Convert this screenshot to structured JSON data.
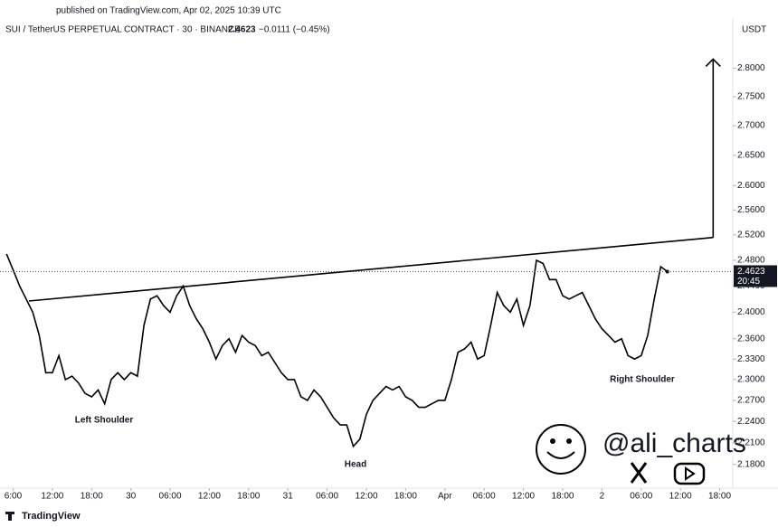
{
  "header": "published on TradingView.com, Apr 02, 2025 10:39 UTC",
  "footer": "TradingView",
  "watermark": "@ali_charts",
  "chart_data": {
    "type": "line",
    "title": "SUI / TetherUS PERPETUAL CONTRACT · 30 · BINANCE",
    "last_price": 2.4623,
    "last_price_label": "2.4623",
    "change_label": "−0.0111 (−0.45%)",
    "countdown": "20:45",
    "y_axis_label": "USDT",
    "yscale": "log",
    "color": "#000000",
    "xlim": [
      -2,
      110
    ],
    "ylim": [
      2.15,
      2.89
    ],
    "xticks": [
      {
        "value": 0,
        "label": "6:00"
      },
      {
        "value": 6,
        "label": "12:00"
      },
      {
        "value": 12,
        "label": "18:00"
      },
      {
        "value": 18,
        "label": "30"
      },
      {
        "value": 24,
        "label": "06:00"
      },
      {
        "value": 30,
        "label": "12:00"
      },
      {
        "value": 36,
        "label": "18:00"
      },
      {
        "value": 42,
        "label": "31"
      },
      {
        "value": 48,
        "label": "06:00"
      },
      {
        "value": 54,
        "label": "12:00"
      },
      {
        "value": 60,
        "label": "18:00"
      },
      {
        "value": 66,
        "label": "Apr"
      },
      {
        "value": 72,
        "label": "06:00"
      },
      {
        "value": 78,
        "label": "12:00"
      },
      {
        "value": 84,
        "label": "18:00"
      },
      {
        "value": 90,
        "label": "2"
      },
      {
        "value": 96,
        "label": "06:00"
      },
      {
        "value": 102,
        "label": "12:00"
      },
      {
        "value": 108,
        "label": "18:00"
      }
    ],
    "yticks": [
      {
        "value": 2.18,
        "label": "2.1800"
      },
      {
        "value": 2.21,
        "label": "2.2100"
      },
      {
        "value": 2.24,
        "label": "2.2400"
      },
      {
        "value": 2.27,
        "label": "2.2700"
      },
      {
        "value": 2.3,
        "label": "2.3000"
      },
      {
        "value": 2.33,
        "label": "2.3300"
      },
      {
        "value": 2.36,
        "label": "2.3600"
      },
      {
        "value": 2.4,
        "label": "2.4000"
      },
      {
        "value": 2.44,
        "label": "2.4400"
      },
      {
        "value": 2.48,
        "label": "2.4800"
      },
      {
        "value": 2.52,
        "label": "2.5200"
      },
      {
        "value": 2.56,
        "label": "2.5600"
      },
      {
        "value": 2.6,
        "label": "2.6000"
      },
      {
        "value": 2.65,
        "label": "2.6500"
      },
      {
        "value": 2.7,
        "label": "2.7000"
      },
      {
        "value": 2.75,
        "label": "2.7500"
      },
      {
        "value": 2.8,
        "label": "2.8000"
      }
    ],
    "x": [
      -1,
      0,
      1,
      2,
      3,
      4,
      5,
      6,
      7,
      8,
      9,
      10,
      11,
      12,
      13,
      14,
      15,
      16,
      17,
      18,
      19,
      20,
      21,
      22,
      23,
      24,
      25,
      26,
      27,
      28,
      29,
      30,
      31,
      32,
      33,
      34,
      35,
      36,
      37,
      38,
      39,
      40,
      41,
      42,
      43,
      44,
      45,
      46,
      47,
      48,
      49,
      50,
      51,
      52,
      53,
      54,
      55,
      56,
      57,
      58,
      59,
      60,
      61,
      62,
      63,
      64,
      65,
      66,
      67,
      68,
      69,
      70,
      71,
      72,
      73,
      74,
      75,
      76,
      77,
      78,
      79,
      80,
      81,
      82,
      83,
      84,
      85,
      86,
      87,
      88,
      89,
      90,
      91,
      92,
      93,
      94,
      95,
      96,
      97,
      98,
      99,
      100
    ],
    "values": [
      2.49,
      2.465,
      2.44,
      2.42,
      2.4,
      2.365,
      2.31,
      2.31,
      2.335,
      2.3,
      2.305,
      2.295,
      2.28,
      2.275,
      2.285,
      2.265,
      2.3,
      2.31,
      2.3,
      2.31,
      2.305,
      2.38,
      2.42,
      2.425,
      2.41,
      2.4,
      2.425,
      2.44,
      2.41,
      2.39,
      2.375,
      2.355,
      2.33,
      2.35,
      2.36,
      2.34,
      2.365,
      2.355,
      2.35,
      2.335,
      2.34,
      2.325,
      2.31,
      2.3,
      2.3,
      2.275,
      2.27,
      2.285,
      2.275,
      2.26,
      2.245,
      2.235,
      2.235,
      2.205,
      2.215,
      2.25,
      2.27,
      2.28,
      2.29,
      2.285,
      2.29,
      2.275,
      2.27,
      2.26,
      2.26,
      2.265,
      2.27,
      2.27,
      2.3,
      2.34,
      2.345,
      2.355,
      2.33,
      2.335,
      2.38,
      2.43,
      2.41,
      2.4,
      2.42,
      2.38,
      2.41,
      2.48,
      2.475,
      2.45,
      2.45,
      2.425,
      2.42,
      2.425,
      2.43,
      2.41,
      2.39,
      2.375,
      2.365,
      2.355,
      2.36,
      2.335,
      2.33,
      2.335,
      2.365,
      2.42,
      2.47,
      2.4623
    ],
    "neckline": {
      "x": [
        2.4,
        107
      ],
      "y": [
        2.417,
        2.516
      ]
    },
    "target_arrow": {
      "x": 107,
      "y": [
        2.516,
        2.816
      ]
    },
    "annotations": [
      "Left Shoulder",
      "Head",
      "Right Shoulder"
    ]
  }
}
